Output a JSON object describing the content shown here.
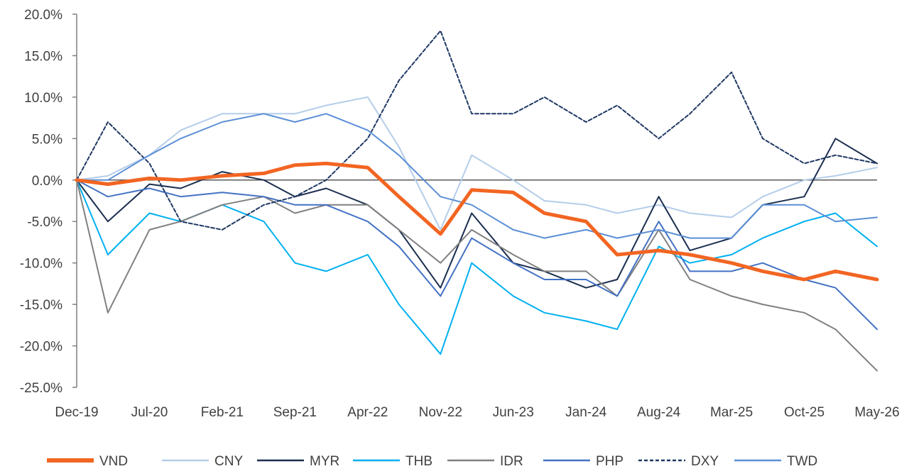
{
  "chart_data": {
    "type": "line",
    "title": "",
    "xlabel": "",
    "ylabel": "",
    "ylim": [
      -0.25,
      0.2
    ],
    "xlim": [
      "2019-12",
      "2026-05"
    ],
    "x_tick_labels": [
      "Dec-19",
      "Jul-20",
      "Feb-21",
      "Sep-21",
      "Apr-22",
      "Nov-22",
      "Jun-23",
      "Jan-24",
      "Aug-24",
      "Mar-25",
      "Oct-25",
      "May-26"
    ],
    "y_tick_labels": [
      "20.0%",
      "15.0%",
      "10.0%",
      "5.0%",
      "0.0%",
      "-5.0%",
      "-10.0%",
      "-15.0%",
      "-20.0%",
      "-25.0%"
    ],
    "y_ticks": [
      0.2,
      0.15,
      0.1,
      0.05,
      0.0,
      -0.05,
      -0.1,
      -0.15,
      -0.2,
      -0.25
    ],
    "legend_position": "bottom",
    "x": [
      "2019-12",
      "2020-03",
      "2020-07",
      "2020-10",
      "2021-02",
      "2021-06",
      "2021-09",
      "2021-12",
      "2022-04",
      "2022-07",
      "2022-11",
      "2023-02",
      "2023-06",
      "2023-09",
      "2024-01",
      "2024-04",
      "2024-08",
      "2024-11",
      "2025-03",
      "2025-06",
      "2025-10",
      "2026-01",
      "2026-05"
    ],
    "series": [
      {
        "name": "VND",
        "color": "#f26522",
        "width": 5,
        "dash": "",
        "values": [
          0.0,
          -0.005,
          0.002,
          0.0,
          0.005,
          0.008,
          0.018,
          0.02,
          0.015,
          -0.02,
          -0.065,
          -0.012,
          -0.015,
          -0.04,
          -0.05,
          -0.09,
          -0.085,
          -0.09,
          -0.1,
          -0.11,
          -0.12,
          -0.11,
          -0.12
        ]
      },
      {
        "name": "CNY",
        "color": "#b4cde9",
        "width": 2,
        "dash": "",
        "values": [
          0.0,
          0.005,
          0.03,
          0.06,
          0.08,
          0.08,
          0.08,
          0.09,
          0.1,
          0.04,
          -0.06,
          0.03,
          0.0,
          -0.025,
          -0.03,
          -0.04,
          -0.03,
          -0.04,
          -0.045,
          -0.02,
          0.0,
          0.005,
          0.015
        ]
      },
      {
        "name": "MYR",
        "color": "#1a2e4f",
        "width": 2,
        "dash": "",
        "values": [
          0.0,
          -0.05,
          -0.005,
          -0.01,
          0.01,
          0.0,
          -0.02,
          -0.01,
          -0.03,
          -0.06,
          -0.13,
          -0.04,
          -0.1,
          -0.11,
          -0.13,
          -0.12,
          -0.02,
          -0.085,
          -0.07,
          -0.03,
          -0.02,
          0.05,
          0.02
        ]
      },
      {
        "name": "THB",
        "color": "#00b0f0",
        "width": 2,
        "dash": "",
        "values": [
          0.0,
          -0.09,
          -0.04,
          -0.05,
          -0.03,
          -0.05,
          -0.1,
          -0.11,
          -0.09,
          -0.15,
          -0.21,
          -0.1,
          -0.14,
          -0.16,
          -0.17,
          -0.18,
          -0.08,
          -0.1,
          -0.09,
          -0.07,
          -0.05,
          -0.04,
          -0.08
        ]
      },
      {
        "name": "IDR",
        "color": "#808080",
        "width": 2,
        "dash": "",
        "values": [
          0.0,
          -0.16,
          -0.06,
          -0.05,
          -0.03,
          -0.02,
          -0.04,
          -0.03,
          -0.03,
          -0.06,
          -0.1,
          -0.06,
          -0.09,
          -0.11,
          -0.11,
          -0.14,
          -0.06,
          -0.12,
          -0.14,
          -0.15,
          -0.16,
          -0.18,
          -0.23
        ]
      },
      {
        "name": "PHP",
        "color": "#4472c4",
        "width": 2,
        "dash": "",
        "values": [
          0.0,
          -0.02,
          -0.01,
          -0.02,
          -0.015,
          -0.02,
          -0.03,
          -0.03,
          -0.05,
          -0.08,
          -0.14,
          -0.07,
          -0.1,
          -0.12,
          -0.12,
          -0.14,
          -0.05,
          -0.11,
          -0.11,
          -0.1,
          -0.12,
          -0.13,
          -0.18
        ]
      },
      {
        "name": "DXY",
        "color": "#1f3864",
        "width": 2,
        "dash": "5,3",
        "values": [
          0.0,
          0.07,
          0.02,
          -0.05,
          -0.06,
          -0.03,
          -0.02,
          0.0,
          0.05,
          0.12,
          0.18,
          0.08,
          0.08,
          0.1,
          0.07,
          0.09,
          0.05,
          0.08,
          0.13,
          0.05,
          0.02,
          0.03,
          0.02
        ]
      },
      {
        "name": "TWD",
        "color": "#5b8fd6",
        "width": 2,
        "dash": "",
        "values": [
          0.0,
          0.0,
          0.03,
          0.05,
          0.07,
          0.08,
          0.07,
          0.08,
          0.06,
          0.03,
          -0.02,
          -0.03,
          -0.06,
          -0.07,
          -0.06,
          -0.07,
          -0.06,
          -0.07,
          -0.07,
          -0.03,
          -0.03,
          -0.05,
          -0.045
        ]
      }
    ]
  }
}
